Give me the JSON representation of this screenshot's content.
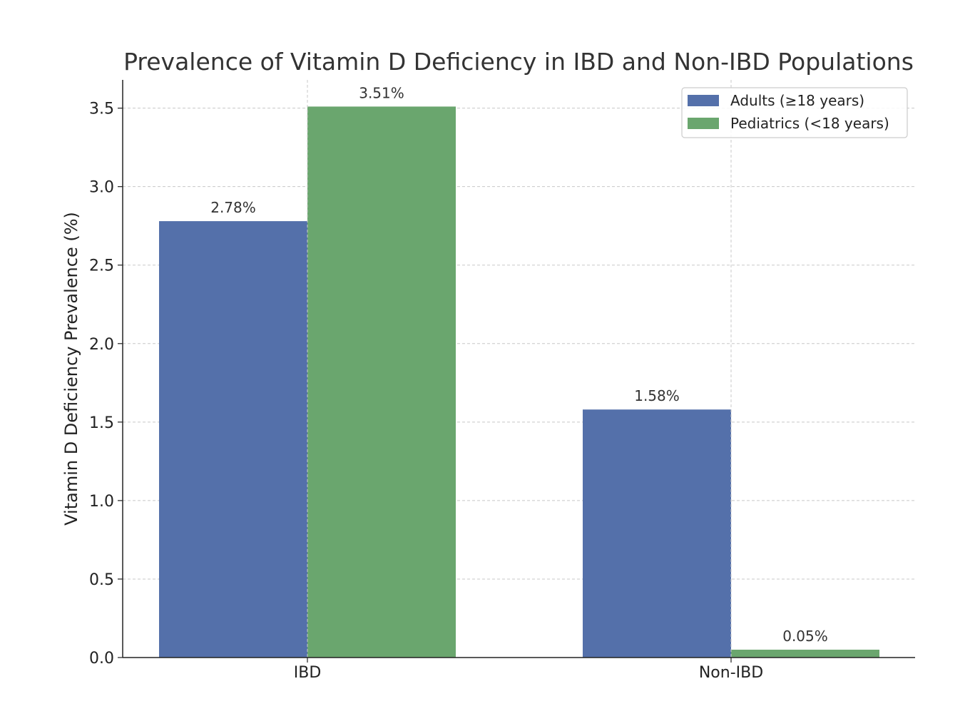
{
  "chart_data": {
    "type": "bar",
    "title": "Prevalence of Vitamin D Deficiency in IBD and Non-IBD Populations",
    "xlabel": "",
    "ylabel": "Vitamin D Deficiency Prevalence (%)",
    "categories": [
      "IBD",
      "Non-IBD"
    ],
    "series": [
      {
        "name": "Adults (≥18 years)",
        "values": [
          2.78,
          1.58
        ],
        "labels": [
          "2.78%",
          "1.58%"
        ],
        "color": "#5470aa"
      },
      {
        "name": "Pediatrics (<18 years)",
        "values": [
          3.51,
          0.05
        ],
        "labels": [
          "3.51%",
          "0.05%"
        ],
        "color": "#6aa66e"
      }
    ],
    "ylim": [
      0,
      3.68
    ],
    "yticks": [
      0.0,
      0.5,
      1.0,
      1.5,
      2.0,
      2.5,
      3.0,
      3.5
    ],
    "ytick_labels": [
      "0.0",
      "0.5",
      "1.0",
      "1.5",
      "2.0",
      "2.5",
      "3.0",
      "3.5"
    ],
    "grid": true,
    "legend_position": "top-right"
  }
}
